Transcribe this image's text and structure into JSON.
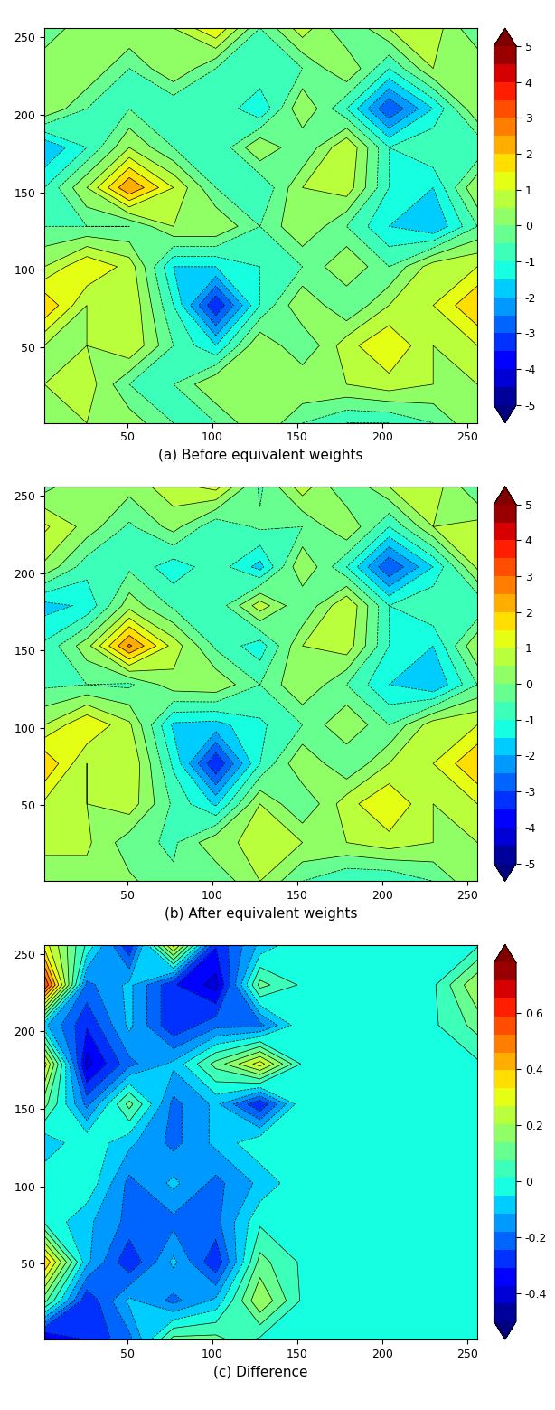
{
  "chart_data": [
    {
      "type": "contour",
      "xlabel": "(a) Before equivalent weights",
      "x": [
        1,
        26,
        51,
        77,
        102,
        128,
        153,
        179,
        204,
        230,
        256
      ],
      "y": [
        1,
        26,
        51,
        77,
        102,
        128,
        153,
        179,
        204,
        230,
        256
      ],
      "xlim": [
        1,
        256
      ],
      "ylim": [
        1,
        256
      ],
      "xticks": [
        50,
        100,
        150,
        200,
        250
      ],
      "yticks": [
        50,
        100,
        150,
        200,
        250
      ],
      "cells": [
        [
          0.5,
          0.5,
          0.3,
          -0.5,
          -0.5,
          0.5,
          -0.5,
          -1.0,
          -1.0,
          -0.5,
          0.5
        ],
        [
          0.5,
          0.8,
          -0.5,
          -0.5,
          0.5,
          0.5,
          0.5,
          0.5,
          0.8,
          0.5,
          0.5
        ],
        [
          0.5,
          0.5,
          1.0,
          -0.5,
          -1.5,
          0.5,
          -0.5,
          0.8,
          1.5,
          0.5,
          1.0
        ],
        [
          2.0,
          0.5,
          1.0,
          -1.0,
          -3.5,
          -1.0,
          0.5,
          -0.5,
          0.5,
          1.0,
          2.0
        ],
        [
          0.5,
          1.5,
          0.8,
          -1.5,
          -1.5,
          -1.0,
          -0.5,
          0.5,
          -0.5,
          0.8,
          1.0
        ],
        [
          -0.5,
          -0.5,
          -0.5,
          0.5,
          0.5,
          -0.5,
          0.5,
          -0.5,
          -1.5,
          -2.0,
          -0.5
        ],
        [
          -1.0,
          0.5,
          2.5,
          1.0,
          -0.5,
          -1.0,
          0.5,
          0.8,
          -1.0,
          -1.5,
          0.5
        ],
        [
          -2.0,
          -1.0,
          0.5,
          -0.5,
          -1.0,
          0.5,
          -0.5,
          1.0,
          -1.0,
          -0.5,
          -1.0
        ],
        [
          0.5,
          -0.5,
          -0.5,
          -1.0,
          -0.5,
          -1.5,
          0.5,
          -1.0,
          -3.0,
          -1.5,
          0.5
        ],
        [
          0.5,
          0.5,
          -0.5,
          0.5,
          -0.5,
          -0.5,
          -0.5,
          0.5,
          -1.0,
          0.5,
          0.5
        ],
        [
          -0.5,
          0.5,
          0.5,
          0.5,
          1.5,
          -0.5,
          0.8,
          -0.5,
          0.5,
          0.8,
          -0.5
        ]
      ],
      "colorbar_range": [
        -5,
        5
      ],
      "colorbar_ticks": [
        -5,
        -4,
        -3,
        -2,
        -1,
        0,
        1,
        2,
        3,
        4,
        5
      ]
    },
    {
      "type": "contour",
      "xlabel": "(b) After equivalent weights",
      "x": [
        1,
        26,
        51,
        77,
        102,
        128,
        153,
        179,
        204,
        230,
        256
      ],
      "y": [
        1,
        26,
        51,
        77,
        102,
        128,
        153,
        179,
        204,
        230,
        256
      ],
      "xlim": [
        1,
        256
      ],
      "ylim": [
        1,
        256
      ],
      "xticks": [
        50,
        100,
        150,
        200,
        250
      ],
      "yticks": [
        50,
        100,
        150,
        200,
        250
      ],
      "cells": [
        [
          0.3,
          0.3,
          0.1,
          -0.4,
          -0.4,
          0.5,
          -0.5,
          -1.0,
          -1.0,
          -0.5,
          0.5
        ],
        [
          0.6,
          0.6,
          -0.3,
          -0.6,
          0.4,
          0.6,
          0.5,
          0.5,
          0.8,
          0.5,
          0.5
        ],
        [
          0.9,
          0.5,
          0.8,
          -0.6,
          -1.6,
          0.5,
          -0.5,
          0.8,
          1.5,
          0.5,
          1.0
        ],
        [
          2.0,
          0.5,
          1.0,
          -1.1,
          -3.5,
          -1.0,
          0.5,
          -0.5,
          0.5,
          1.0,
          2.0
        ],
        [
          0.5,
          1.5,
          0.6,
          -1.6,
          -1.7,
          -1.1,
          -0.5,
          0.5,
          -0.5,
          0.8,
          1.0
        ],
        [
          -0.6,
          -0.5,
          -0.6,
          0.3,
          0.4,
          -0.5,
          0.5,
          -0.5,
          -1.5,
          -2.0,
          -0.5
        ],
        [
          -0.9,
          0.3,
          2.6,
          0.8,
          -0.6,
          -1.3,
          0.5,
          0.8,
          -1.0,
          -1.5,
          0.5
        ],
        [
          -1.7,
          -1.4,
          0.3,
          -0.6,
          -0.9,
          0.8,
          -0.5,
          1.0,
          -1.0,
          -0.5,
          -1.0
        ],
        [
          0.4,
          -0.8,
          -0.6,
          -1.3,
          -0.7,
          -1.7,
          0.5,
          -1.0,
          -3.0,
          -1.5,
          0.6
        ],
        [
          1.1,
          0.3,
          -0.6,
          0.2,
          -0.9,
          -0.4,
          -0.5,
          0.5,
          -1.0,
          0.5,
          0.7
        ],
        [
          -0.2,
          0.5,
          0.2,
          0.8,
          1.2,
          -0.6,
          0.8,
          -0.5,
          0.5,
          0.8,
          -0.5
        ]
      ],
      "colorbar_range": [
        -5,
        5
      ],
      "colorbar_ticks": [
        -5,
        -4,
        -3,
        -2,
        -1,
        0,
        1,
        2,
        3,
        4,
        5
      ]
    },
    {
      "type": "contour",
      "xlabel": "(c) Difference",
      "x": [
        1,
        26,
        51,
        77,
        102,
        128,
        153,
        179,
        204,
        230,
        256
      ],
      "y": [
        1,
        26,
        51,
        77,
        102,
        128,
        153,
        179,
        204,
        230,
        256
      ],
      "xlim": [
        1,
        256
      ],
      "ylim": [
        1,
        256
      ],
      "xticks": [
        50,
        100,
        150,
        200,
        250
      ],
      "yticks": [
        50,
        100,
        150,
        200,
        250
      ],
      "cells": [
        [
          -0.4,
          -0.3,
          -0.2,
          0.1,
          0.1,
          0.0,
          0.0,
          0.0,
          0.0,
          0.0,
          0.0
        ],
        [
          0.1,
          -0.3,
          -0.1,
          -0.2,
          -0.1,
          0.2,
          0.0,
          0.0,
          0.0,
          0.0,
          0.0
        ],
        [
          0.4,
          -0.1,
          -0.3,
          -0.1,
          -0.3,
          0.1,
          0.0,
          0.0,
          0.0,
          0.0,
          0.0
        ],
        [
          0.0,
          -0.1,
          -0.2,
          -0.2,
          -0.2,
          0.0,
          0.0,
          0.0,
          0.0,
          0.0,
          0.0
        ],
        [
          0.0,
          0.0,
          -0.2,
          -0.1,
          -0.2,
          -0.1,
          0.0,
          0.0,
          0.0,
          0.0,
          0.0
        ],
        [
          -0.1,
          0.0,
          -0.1,
          -0.2,
          -0.1,
          0.0,
          0.0,
          0.0,
          0.0,
          0.0,
          0.0
        ],
        [
          0.1,
          -0.2,
          0.1,
          -0.2,
          -0.1,
          -0.3,
          0.0,
          0.0,
          0.0,
          0.0,
          0.0
        ],
        [
          0.3,
          -0.4,
          -0.2,
          -0.1,
          0.1,
          0.3,
          0.0,
          0.0,
          0.0,
          0.0,
          0.0
        ],
        [
          -0.1,
          -0.3,
          -0.1,
          -0.3,
          -0.2,
          -0.2,
          0.0,
          0.0,
          0.0,
          0.0,
          0.1
        ],
        [
          0.6,
          -0.2,
          -0.1,
          -0.3,
          -0.4,
          0.1,
          0.0,
          0.0,
          0.0,
          0.0,
          0.2
        ],
        [
          0.3,
          0.0,
          -0.3,
          0.3,
          -0.3,
          -0.1,
          0.0,
          0.0,
          0.0,
          0.0,
          0.0
        ]
      ],
      "colorbar_range": [
        -0.5,
        0.78
      ],
      "colorbar_ticks": [
        -0.4,
        -0.2,
        0,
        0.2,
        0.4,
        0.6
      ]
    }
  ]
}
